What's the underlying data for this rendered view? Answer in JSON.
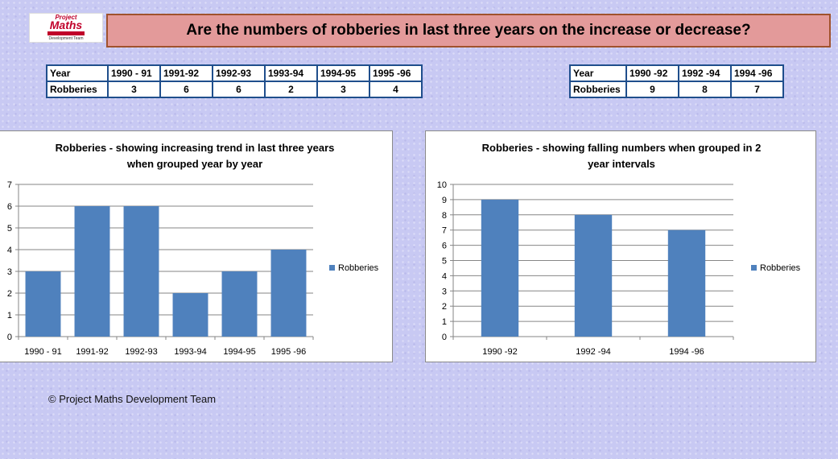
{
  "logo": {
    "line1": "Project",
    "line2": "Maths",
    "line3": "Development Team"
  },
  "title": "Are the numbers of robberies in last three years on the increase or decrease?",
  "table1": {
    "header_label": "Year",
    "row_label": "Robberies",
    "years": [
      "1990 - 91",
      "1991-92",
      "1992-93",
      "1993-94",
      "1994-95",
      "1995 -96"
    ],
    "values": [
      "3",
      "6",
      "6",
      "2",
      "3",
      "4"
    ]
  },
  "table2": {
    "header_label": "Year",
    "row_label": "Robberies",
    "years": [
      "1990 -92",
      "1992 -94",
      "1994 -96"
    ],
    "values": [
      "9",
      "8",
      "7"
    ]
  },
  "chart_data": [
    {
      "type": "bar",
      "title": "Robberies - showing increasing trend in last three years when grouped year by year",
      "title_lines": [
        "Robberies - showing increasing trend in last three years",
        "when grouped year by year"
      ],
      "categories": [
        "1990 - 91",
        "1991-92",
        "1992-93",
        "1993-94",
        "1994-95",
        "1995 -96"
      ],
      "series": [
        {
          "name": "Robberies",
          "values": [
            3,
            6,
            6,
            2,
            3,
            4
          ]
        }
      ],
      "xlabel": "",
      "ylabel": "",
      "ylim": [
        0,
        7
      ],
      "yticks": [
        0,
        1,
        2,
        3,
        4,
        5,
        6,
        7
      ],
      "grid": true,
      "legend": "right",
      "color": "#4f81bd"
    },
    {
      "type": "bar",
      "title": "Robberies - showing falling numbers when grouped in 2 year intervals",
      "title_lines": [
        "Robberies - showing falling numbers when grouped in 2",
        "year intervals"
      ],
      "categories": [
        "1990 -92",
        "1992 -94",
        "1994 -96"
      ],
      "series": [
        {
          "name": "Robberies",
          "values": [
            9,
            8,
            7
          ]
        }
      ],
      "xlabel": "",
      "ylabel": "",
      "ylim": [
        0,
        10
      ],
      "yticks": [
        0,
        1,
        2,
        3,
        4,
        5,
        6,
        7,
        8,
        9,
        10
      ],
      "grid": true,
      "legend": "right",
      "color": "#4f81bd"
    }
  ],
  "footer": "© Project Maths Development Team"
}
